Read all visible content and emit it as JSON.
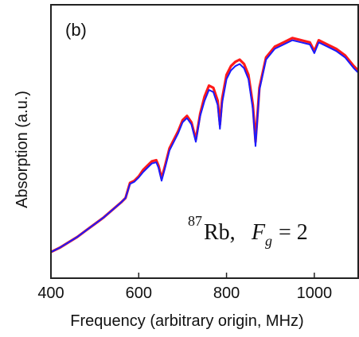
{
  "chart_data": {
    "type": "line",
    "panel_label": "(b)",
    "xlabel": "Frequency (arbitrary origin, MHz)",
    "ylabel": "Absorption (a.u.)",
    "xlim": [
      400,
      1100
    ],
    "ylim": [
      0,
      1
    ],
    "xticks": [
      400,
      600,
      800,
      1000
    ],
    "annotation": {
      "isotope_mass": "87",
      "element": "Rb,",
      "variable": "F",
      "subscript": "g",
      "relation": "= 2"
    },
    "series": [
      {
        "color": "#ff1a1a",
        "x": [
          400,
          420,
          440,
          460,
          480,
          500,
          520,
          540,
          560,
          570,
          580,
          590,
          600,
          610,
          620,
          630,
          640,
          645,
          652,
          660,
          670,
          680,
          690,
          700,
          710,
          720,
          730,
          740,
          750,
          760,
          770,
          780,
          785,
          790,
          800,
          810,
          820,
          830,
          840,
          850,
          860,
          866,
          875,
          890,
          910,
          930,
          950,
          970,
          990,
          1000,
          1010,
          1030,
          1050,
          1070,
          1090,
          1100
        ],
        "y": [
          0.04,
          0.06,
          0.085,
          0.11,
          0.14,
          0.17,
          0.2,
          0.235,
          0.27,
          0.29,
          0.36,
          0.37,
          0.39,
          0.42,
          0.44,
          0.46,
          0.465,
          0.44,
          0.38,
          0.44,
          0.52,
          0.56,
          0.6,
          0.65,
          0.67,
          0.64,
          0.56,
          0.68,
          0.76,
          0.81,
          0.8,
          0.74,
          0.63,
          0.75,
          0.86,
          0.9,
          0.92,
          0.93,
          0.91,
          0.86,
          0.72,
          0.55,
          0.8,
          0.94,
          0.99,
          1.01,
          1.03,
          1.02,
          1.01,
          0.97,
          1.02,
          1.0,
          0.98,
          0.95,
          0.9,
          0.88
        ]
      },
      {
        "color": "#1a1aff",
        "x": [
          400,
          420,
          440,
          460,
          480,
          500,
          520,
          540,
          560,
          570,
          580,
          590,
          600,
          610,
          620,
          630,
          640,
          645,
          652,
          660,
          670,
          680,
          690,
          700,
          710,
          720,
          730,
          740,
          750,
          760,
          770,
          780,
          785,
          790,
          800,
          810,
          820,
          830,
          840,
          850,
          860,
          866,
          875,
          890,
          910,
          930,
          950,
          970,
          990,
          1000,
          1010,
          1030,
          1050,
          1070,
          1090,
          1100
        ],
        "y": [
          0.04,
          0.06,
          0.085,
          0.11,
          0.14,
          0.17,
          0.2,
          0.235,
          0.27,
          0.29,
          0.355,
          0.365,
          0.385,
          0.41,
          0.43,
          0.45,
          0.455,
          0.43,
          0.37,
          0.43,
          0.51,
          0.55,
          0.59,
          0.64,
          0.66,
          0.63,
          0.55,
          0.67,
          0.74,
          0.79,
          0.78,
          0.72,
          0.61,
          0.73,
          0.84,
          0.88,
          0.9,
          0.91,
          0.89,
          0.84,
          0.7,
          0.53,
          0.79,
          0.93,
          0.98,
          1.0,
          1.02,
          1.01,
          1.0,
          0.96,
          1.01,
          0.99,
          0.97,
          0.94,
          0.89,
          0.87
        ]
      }
    ]
  }
}
